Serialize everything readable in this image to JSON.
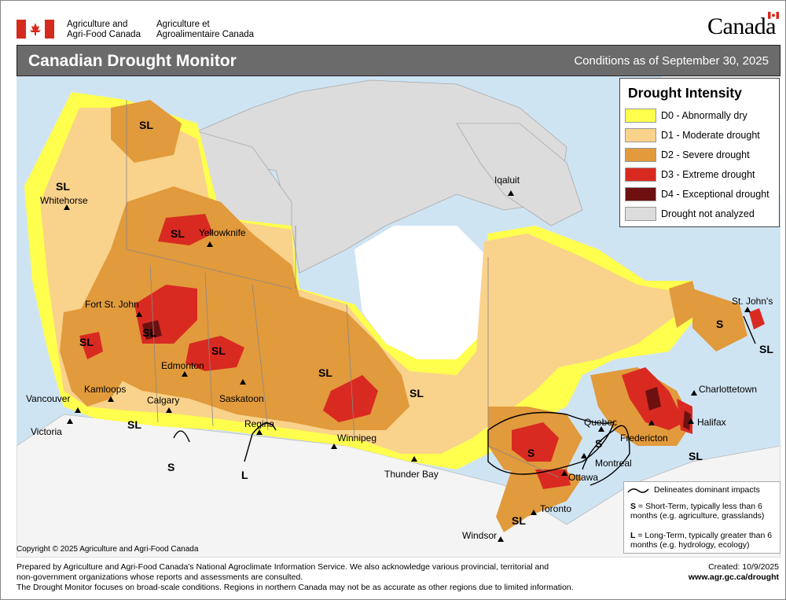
{
  "header": {
    "agency_en_1": "Agriculture and",
    "agency_en_2": "Agri-Food Canada",
    "agency_fr_1": "Agriculture et",
    "agency_fr_2": "Agroalimentaire Canada",
    "wordmark": "Canada",
    "flag_red": "#d52b1e"
  },
  "titlebar": {
    "title": "Canadian Drought Monitor",
    "date": "Conditions as of September 30, 2025"
  },
  "legend": {
    "title": "Drought Intensity",
    "items": [
      {
        "label": "D0 - Abnormally dry",
        "color": "#ffff4d"
      },
      {
        "label": "D1 - Moderate drought",
        "color": "#f9d28c"
      },
      {
        "label": "D2 - Severe drought",
        "color": "#e19a3c"
      },
      {
        "label": "D3 - Extreme drought",
        "color": "#d92a22"
      },
      {
        "label": "D4 - Exceptional drought",
        "color": "#6e1010"
      },
      {
        "label": "Drought not analyzed",
        "color": "#dcdcdc"
      }
    ]
  },
  "cities": {
    "whitehorse": "Whitehorse",
    "yellowknife": "Yellowknife",
    "iqaluit": "Iqaluit",
    "fort_st_john": "Fort St. John",
    "edmonton": "Edmonton",
    "kamloops": "Kamloops",
    "vancouver": "Vancouver",
    "victoria": "Victoria",
    "calgary": "Calgary",
    "saskatoon": "Saskatoon",
    "regina": "Regina",
    "winnipeg": "Winnipeg",
    "thunder_bay": "Thunder Bay",
    "windsor": "Windsor",
    "toronto": "Toronto",
    "ottawa": "Ottawa",
    "montreal": "Montreal",
    "quebec": "Quebec",
    "fredericton": "Fredericton",
    "halifax": "Halifax",
    "charlottetown": "Charlottetown",
    "st_johns": "St. John's"
  },
  "impact_labels": {
    "sl": "SL",
    "s": "S",
    "l": "L"
  },
  "impacts": {
    "line_label": "Delineates dominant impacts",
    "s_key": "S",
    "s_text": " = Short-Term, typically less than 6 months (e.g. agriculture, grasslands)",
    "l_key": "L",
    "l_text": " = Long-Term, typically greater  than 6 months (e.g. hydrology, ecology)"
  },
  "copyright": "Copyright © 2025 Agriculture and Agri-Food Canada",
  "footer": {
    "line1": "Prepared by Agriculture and Agri-Food Canada's National Agroclimate Information Service.  We also acknowledge various provincial, territorial and",
    "line2": "non-government organizations whose reports and assessments are consulted.",
    "line3": "The Drought Monitor focuses on broad-scale conditions.  Regions in northern Canada may not be as accurate as other regions due to limited information.",
    "created": "Created: 10/9/2025",
    "url": "www.agr.gc.ca/drought"
  }
}
